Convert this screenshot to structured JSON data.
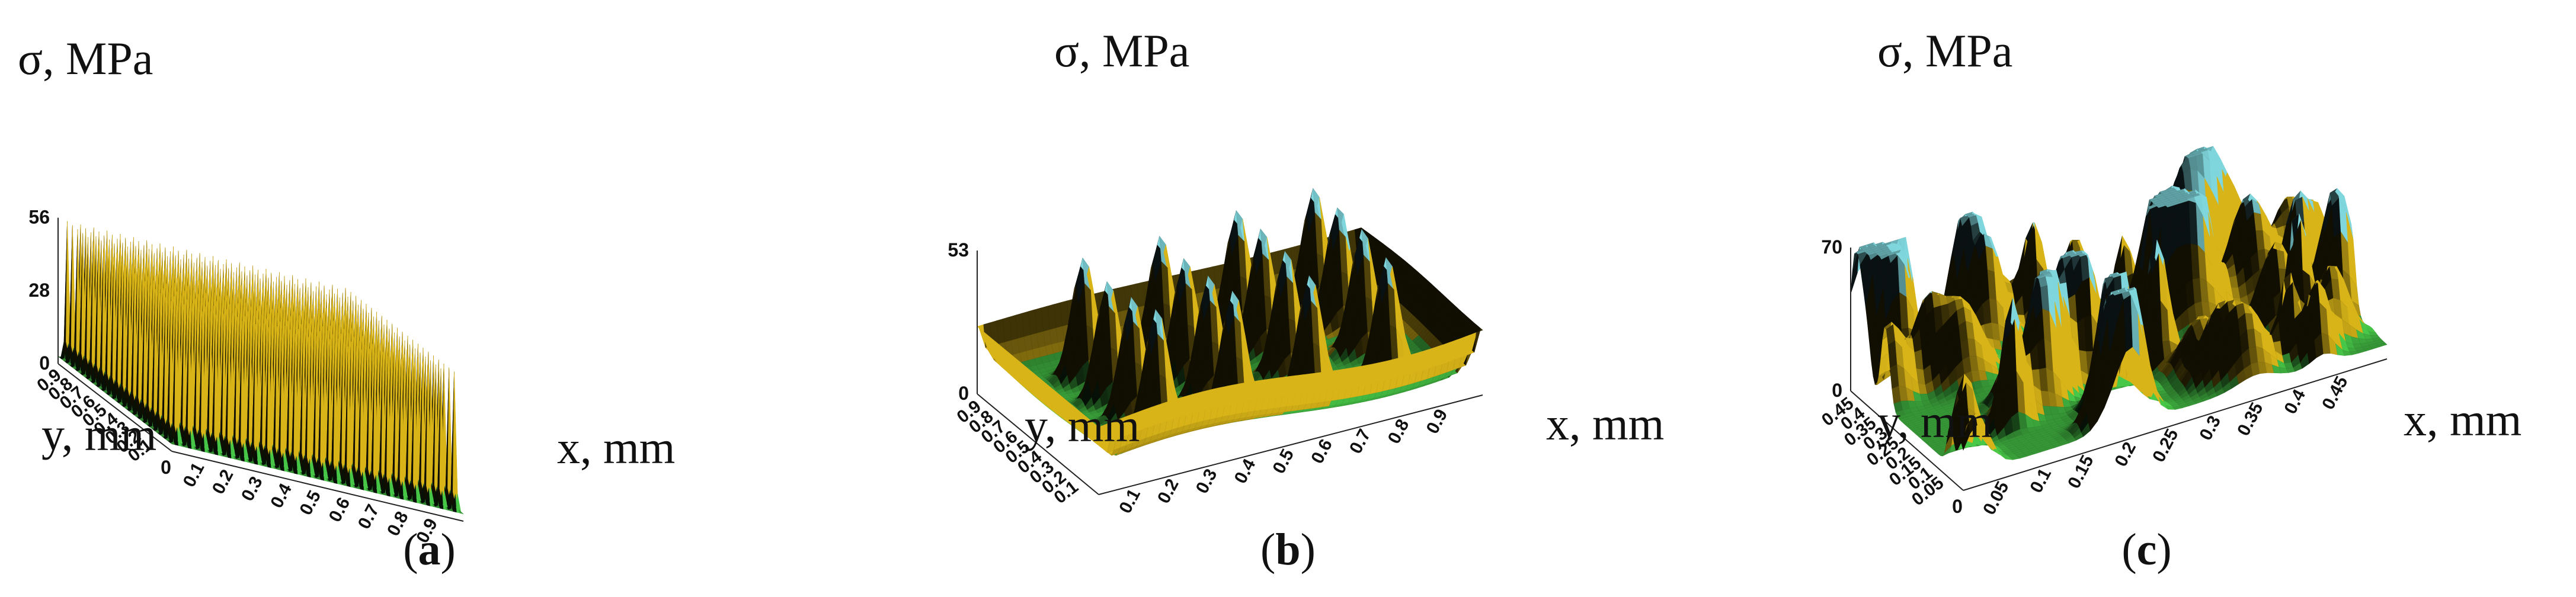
{
  "chart_data": [
    {
      "type": "surface3d",
      "panel_label": "a",
      "zlabel": "σ, MPa",
      "xlabel": "x, mm",
      "ylabel": "y, mm",
      "z_ticks": [
        "0",
        "28",
        "56"
      ],
      "zlim": [
        0,
        56
      ],
      "x_ticks": [
        "0.1",
        "0.2",
        "0.3",
        "0.4",
        "0.5",
        "0.6",
        "0.7",
        "0.8",
        "0.9"
      ],
      "y_ticks": [
        "0.1",
        "0.2",
        "0.3",
        "0.4",
        "0.5",
        "0.6",
        "0.7",
        "0.8",
        "0.9"
      ],
      "xlim": [
        0,
        1
      ],
      "ylim": [
        0,
        1
      ],
      "origin_label": "0",
      "peaks_per_axis": 22,
      "colors": [
        "#1a1a1a",
        "#d8b418",
        "#48c848",
        "#7fd6dc"
      ]
    },
    {
      "type": "surface3d",
      "panel_label": "b",
      "zlabel": "σ, MPa",
      "xlabel": "x, mm",
      "ylabel": "y, mm",
      "z_ticks": [
        "0",
        "53"
      ],
      "zlim": [
        0,
        53
      ],
      "x_ticks": [
        "0.1",
        "0.2",
        "0.3",
        "0.4",
        "0.5",
        "0.6",
        "0.7",
        "0.8",
        "0.9"
      ],
      "y_ticks": [
        "0.1",
        "0.2",
        "0.3",
        "0.4",
        "0.5",
        "0.6",
        "0.7",
        "0.8",
        "0.9"
      ],
      "xlim": [
        0,
        1
      ],
      "ylim": [
        0,
        1
      ],
      "origin_label": "",
      "peaks_per_axis": 4,
      "colors": [
        "#1a1a1a",
        "#d8b418",
        "#48c848",
        "#7fd6dc"
      ]
    },
    {
      "type": "surface3d",
      "panel_label": "c",
      "zlabel": "σ, MPa",
      "xlabel": "x, mm",
      "ylabel": "y, mm",
      "z_ticks": [
        "0",
        "70"
      ],
      "zlim": [
        0,
        70
      ],
      "x_ticks": [
        "0.05",
        "0.1",
        "0.15",
        "0.2",
        "0.25",
        "0.3",
        "0.35",
        "0.4",
        "0.45"
      ],
      "y_ticks": [
        "0.05",
        "0.1",
        "0.15",
        "0.2",
        "0.25",
        "0.3",
        "0.35",
        "0.4",
        "0.45"
      ],
      "xlim": [
        0,
        0.5
      ],
      "ylim": [
        0,
        0.5
      ],
      "origin_label": "0",
      "peaks_per_axis": 0,
      "colors": [
        "#1a1a1a",
        "#d8b418",
        "#48c848",
        "#7fd6dc"
      ]
    }
  ]
}
